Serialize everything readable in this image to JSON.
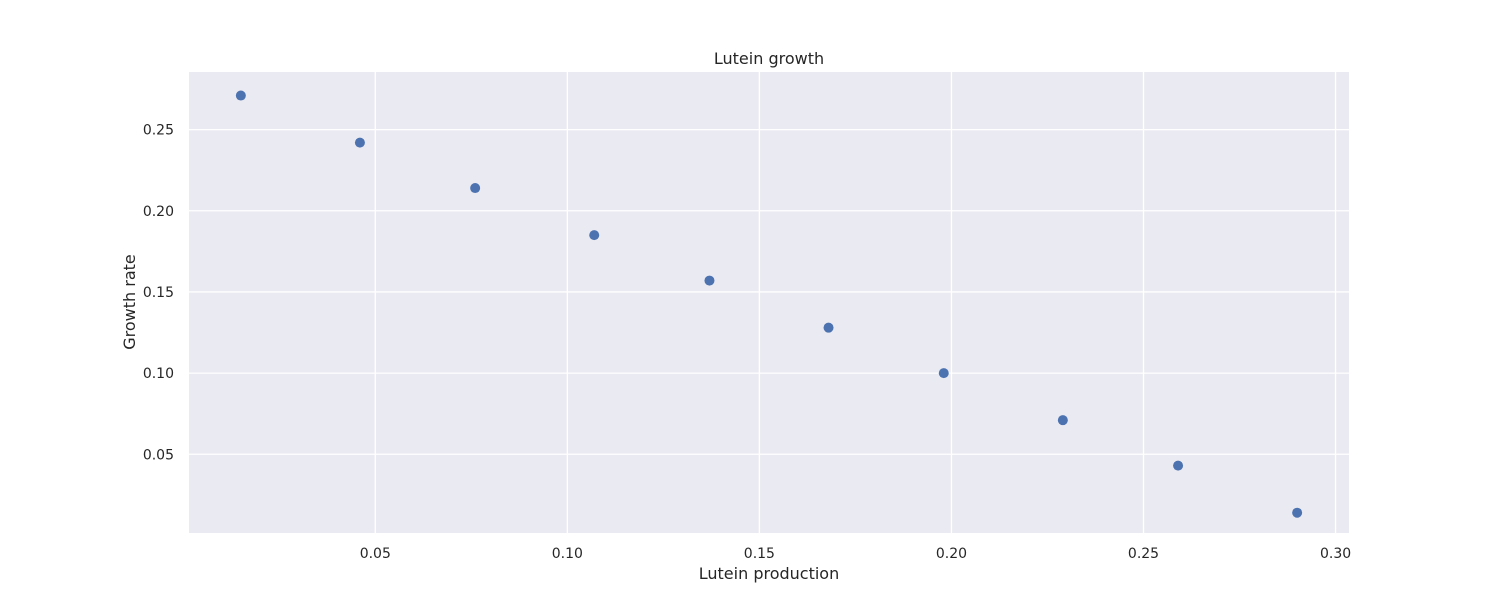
{
  "chart_data": {
    "type": "scatter",
    "title": "Lutein growth",
    "xlabel": "Lutein production",
    "ylabel": "Growth rate",
    "xlim": [
      0.0015,
      0.3035
    ],
    "ylim": [
      0.0015,
      0.2855
    ],
    "xticks": [
      0.05,
      0.1,
      0.15,
      0.2,
      0.25,
      0.3
    ],
    "xtick_labels": [
      "0.05",
      "0.10",
      "0.15",
      "0.20",
      "0.25",
      "0.30"
    ],
    "yticks": [
      0.05,
      0.1,
      0.15,
      0.2,
      0.25
    ],
    "ytick_labels": [
      "0.05",
      "0.10",
      "0.15",
      "0.20",
      "0.25"
    ],
    "grid": true,
    "series": [
      {
        "color": "#4c72b0",
        "x": [
          0.015,
          0.046,
          0.076,
          0.107,
          0.137,
          0.168,
          0.198,
          0.229,
          0.259,
          0.29
        ],
        "y": [
          0.271,
          0.242,
          0.214,
          0.185,
          0.157,
          0.128,
          0.1,
          0.071,
          0.043,
          0.014
        ]
      }
    ],
    "colors": {
      "background": "#eaeaf2",
      "grid": "#ffffff",
      "text": "#262626"
    }
  }
}
